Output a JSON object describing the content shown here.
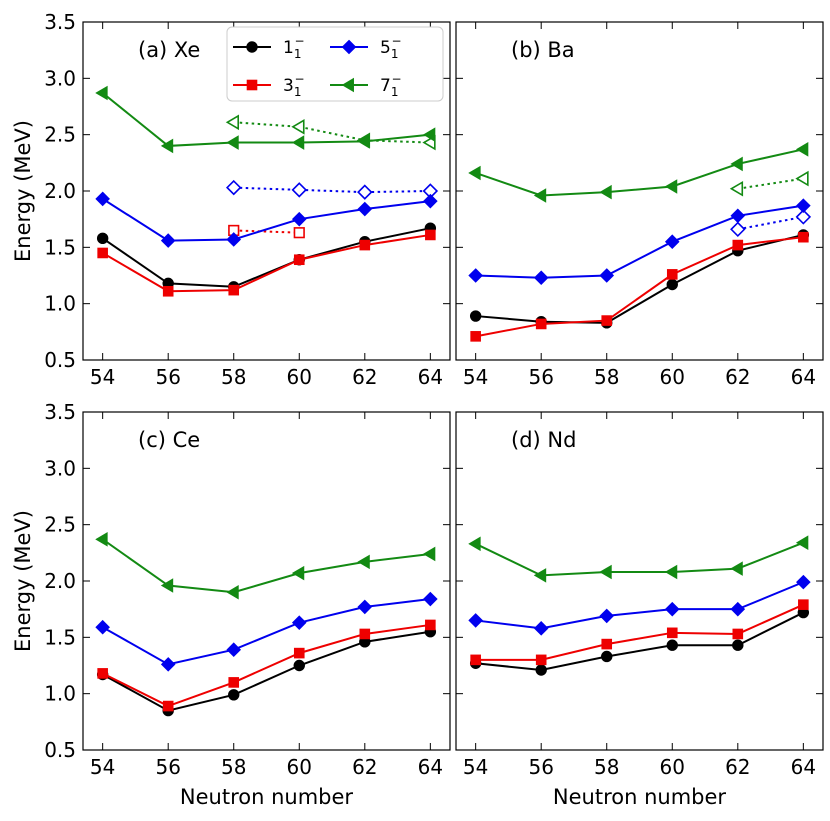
{
  "chart_data": {
    "type": "line",
    "xlabel": "Neutron number",
    "ylabel": "Energy (MeV)",
    "xlim": [
      53.4,
      64.6
    ],
    "ylim": [
      0.5,
      3.5
    ],
    "x_ticks": [
      54,
      56,
      58,
      60,
      62,
      64
    ],
    "x_tick_labels": [
      "54",
      "56",
      "58",
      "60",
      "62",
      "64"
    ],
    "y_ticks": [
      0.5,
      1.0,
      1.5,
      2.0,
      2.5,
      3.0,
      3.5
    ],
    "y_tick_labels": [
      "0.5",
      "1.0",
      "1.5",
      "2.0",
      "2.5",
      "3.0",
      "3.5"
    ],
    "legend": [
      {
        "key": "s1",
        "base": "1",
        "sub": "1",
        "sup": "−",
        "color": "#000000",
        "marker": "circle"
      },
      {
        "key": "s3",
        "base": "3",
        "sub": "1",
        "sup": "−",
        "color": "#ee0000",
        "marker": "square"
      },
      {
        "key": "s5",
        "base": "5",
        "sub": "1",
        "sup": "−",
        "color": "#0000ee",
        "marker": "diamond"
      },
      {
        "key": "s7",
        "base": "7",
        "sub": "1",
        "sup": "−",
        "color": "#138a13",
        "marker": "triangle-left"
      }
    ],
    "panels": [
      {
        "label": "(a) Xe",
        "series": [
          {
            "key": "s1",
            "x": [
              54,
              56,
              58,
              60,
              62,
              64
            ],
            "y": [
              1.58,
              1.18,
              1.15,
              1.39,
              1.55,
              1.67
            ]
          },
          {
            "key": "s3",
            "x": [
              54,
              56,
              58,
              60,
              62,
              64
            ],
            "y": [
              1.45,
              1.11,
              1.12,
              1.39,
              1.52,
              1.61
            ]
          },
          {
            "key": "s5",
            "x": [
              54,
              56,
              58,
              60,
              62,
              64
            ],
            "y": [
              1.93,
              1.56,
              1.57,
              1.75,
              1.84,
              1.91
            ]
          },
          {
            "key": "s7",
            "x": [
              54,
              56,
              58,
              60,
              62,
              64
            ],
            "y": [
              2.87,
              2.4,
              2.43,
              2.43,
              2.44,
              2.5
            ]
          }
        ],
        "experimental": [
          {
            "key": "s3",
            "x": [
              58,
              60
            ],
            "y": [
              1.65,
              1.63
            ]
          },
          {
            "key": "s5",
            "x": [
              58,
              60,
              62,
              64
            ],
            "y": [
              2.03,
              2.01,
              1.99,
              2.0
            ]
          },
          {
            "key": "s7",
            "x": [
              58,
              60,
              62,
              64
            ],
            "y": [
              2.61,
              2.57,
              2.45,
              2.43
            ]
          }
        ]
      },
      {
        "label": "(b) Ba",
        "series": [
          {
            "key": "s1",
            "x": [
              54,
              56,
              58,
              60,
              62,
              64
            ],
            "y": [
              0.89,
              0.84,
              0.83,
              1.17,
              1.47,
              1.61
            ]
          },
          {
            "key": "s3",
            "x": [
              54,
              56,
              58,
              60,
              62,
              64
            ],
            "y": [
              0.71,
              0.82,
              0.85,
              1.26,
              1.52,
              1.59
            ]
          },
          {
            "key": "s5",
            "x": [
              54,
              56,
              58,
              60,
              62,
              64
            ],
            "y": [
              1.25,
              1.23,
              1.25,
              1.55,
              1.78,
              1.87
            ]
          },
          {
            "key": "s7",
            "x": [
              54,
              56,
              58,
              60,
              62,
              64
            ],
            "y": [
              2.16,
              1.96,
              1.99,
              2.04,
              2.24,
              2.37
            ]
          }
        ],
        "experimental": [
          {
            "key": "s5",
            "x": [
              62,
              64
            ],
            "y": [
              1.66,
              1.77
            ]
          },
          {
            "key": "s7",
            "x": [
              62,
              64
            ],
            "y": [
              2.02,
              2.11
            ]
          }
        ]
      },
      {
        "label": "(c) Ce",
        "series": [
          {
            "key": "s1",
            "x": [
              54,
              56,
              58,
              60,
              62,
              64
            ],
            "y": [
              1.17,
              0.85,
              0.99,
              1.25,
              1.46,
              1.55
            ]
          },
          {
            "key": "s3",
            "x": [
              54,
              56,
              58,
              60,
              62,
              64
            ],
            "y": [
              1.18,
              0.89,
              1.1,
              1.36,
              1.53,
              1.61
            ]
          },
          {
            "key": "s5",
            "x": [
              54,
              56,
              58,
              60,
              62,
              64
            ],
            "y": [
              1.59,
              1.26,
              1.39,
              1.63,
              1.77,
              1.84
            ]
          },
          {
            "key": "s7",
            "x": [
              54,
              56,
              58,
              60,
              62,
              64
            ],
            "y": [
              2.37,
              1.96,
              1.9,
              2.07,
              2.17,
              2.24
            ]
          }
        ],
        "experimental": []
      },
      {
        "label": "(d) Nd",
        "series": [
          {
            "key": "s1",
            "x": [
              54,
              56,
              58,
              60,
              62,
              64
            ],
            "y": [
              1.27,
              1.21,
              1.33,
              1.43,
              1.43,
              1.72
            ]
          },
          {
            "key": "s3",
            "x": [
              54,
              56,
              58,
              60,
              62,
              64
            ],
            "y": [
              1.3,
              1.3,
              1.44,
              1.54,
              1.53,
              1.79
            ]
          },
          {
            "key": "s5",
            "x": [
              54,
              56,
              58,
              60,
              62,
              64
            ],
            "y": [
              1.65,
              1.58,
              1.69,
              1.75,
              1.75,
              1.99
            ]
          },
          {
            "key": "s7",
            "x": [
              54,
              56,
              58,
              60,
              62,
              64
            ],
            "y": [
              2.33,
              2.05,
              2.08,
              2.08,
              2.11,
              2.34
            ]
          }
        ],
        "experimental": []
      }
    ]
  }
}
